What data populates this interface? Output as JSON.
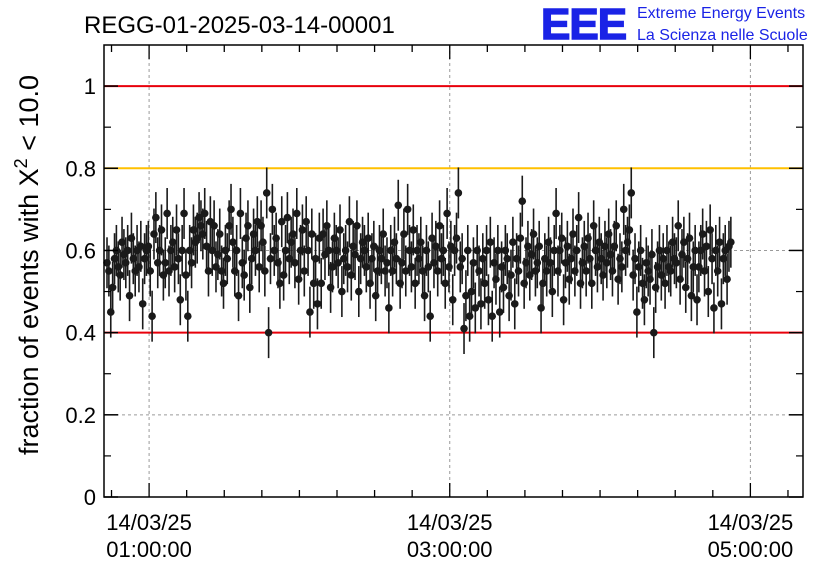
{
  "chart_data": {
    "type": "scatter",
    "title": "REGG-01-2025-03-14-00001",
    "ylabel_prefix": "fraction of events with ",
    "ylabel_symbol": "X",
    "ylabel_sup": "2",
    "ylabel_suffix": " < 10.0",
    "ylim": [
      0,
      1.1
    ],
    "xlim_hours": [
      0.7,
      5.35
    ],
    "y_ticks": [
      {
        "value": 0,
        "label": "0"
      },
      {
        "value": 0.2,
        "label": "0.2"
      },
      {
        "value": 0.4,
        "label": "0.4"
      },
      {
        "value": 0.6,
        "label": "0.6"
      },
      {
        "value": 0.8,
        "label": "0.8"
      },
      {
        "value": 1,
        "label": "1"
      }
    ],
    "x_ticks": [
      {
        "hours": 1,
        "date": "14/03/25",
        "time": "01:00:00"
      },
      {
        "hours": 3,
        "date": "14/03/25",
        "time": "03:00:00"
      },
      {
        "hours": 5,
        "date": "14/03/25",
        "time": "05:00:00"
      }
    ],
    "reference_lines": [
      {
        "value": 1.0,
        "color": "#e8000b"
      },
      {
        "value": 0.8,
        "color": "#ffc000"
      },
      {
        "value": 0.4,
        "color": "#e8000b"
      }
    ],
    "grid": true,
    "marker_color": "#1a1a1a",
    "points": {
      "start_hour": 0.72,
      "step_hour": 0.0125,
      "error": 0.062,
      "y": [
        0.57,
        0.55,
        0.45,
        0.51,
        0.58,
        0.6,
        0.56,
        0.54,
        0.62,
        0.59,
        0.57,
        0.6,
        0.49,
        0.63,
        0.58,
        0.55,
        0.6,
        0.56,
        0.61,
        0.47,
        0.58,
        0.6,
        0.61,
        0.55,
        0.44,
        0.64,
        0.68,
        0.57,
        0.6,
        0.65,
        0.54,
        0.57,
        0.69,
        0.55,
        0.6,
        0.62,
        0.56,
        0.65,
        0.58,
        0.48,
        0.6,
        0.69,
        0.54,
        0.44,
        0.6,
        0.57,
        0.65,
        0.62,
        0.63,
        0.68,
        0.66,
        0.64,
        0.69,
        0.61,
        0.55,
        0.67,
        0.6,
        0.66,
        0.56,
        0.59,
        0.64,
        0.55,
        0.52,
        0.6,
        0.58,
        0.66,
        0.7,
        0.62,
        0.55,
        0.6,
        0.49,
        0.69,
        0.57,
        0.54,
        0.63,
        0.66,
        0.51,
        0.58,
        0.64,
        0.6,
        0.67,
        0.56,
        0.66,
        0.62,
        0.55,
        0.74,
        0.4,
        0.58,
        0.7,
        0.6,
        0.63,
        0.57,
        0.52,
        0.67,
        0.54,
        0.6,
        0.68,
        0.58,
        0.62,
        0.64,
        0.57,
        0.69,
        0.53,
        0.6,
        0.65,
        0.55,
        0.67,
        0.6,
        0.45,
        0.64,
        0.52,
        0.58,
        0.47,
        0.63,
        0.52,
        0.64,
        0.59,
        0.66,
        0.6,
        0.51,
        0.56,
        0.63,
        0.6,
        0.57,
        0.65,
        0.5,
        0.58,
        0.6,
        0.56,
        0.67,
        0.54,
        0.61,
        0.59,
        0.66,
        0.5,
        0.58,
        0.62,
        0.6,
        0.56,
        0.63,
        0.52,
        0.58,
        0.61,
        0.49,
        0.55,
        0.6,
        0.58,
        0.64,
        0.55,
        0.57,
        0.46,
        0.6,
        0.55,
        0.62,
        0.58,
        0.71,
        0.52,
        0.57,
        0.64,
        0.55,
        0.7,
        0.6,
        0.56,
        0.65,
        0.52,
        0.6,
        0.58,
        0.62,
        0.55,
        0.49,
        0.6,
        0.56,
        0.44,
        0.63,
        0.57,
        0.61,
        0.55,
        0.66,
        0.58,
        0.6,
        0.52,
        0.69,
        0.56,
        0.61,
        0.48,
        0.6,
        0.63,
        0.74,
        0.56,
        0.58,
        0.41,
        0.49,
        0.6,
        0.44,
        0.5,
        0.57,
        0.46,
        0.6,
        0.55,
        0.47,
        0.58,
        0.52,
        0.6,
        0.48,
        0.62,
        0.44,
        0.57,
        0.53,
        0.6,
        0.45,
        0.56,
        0.51,
        0.6,
        0.58,
        0.49,
        0.54,
        0.62,
        0.47,
        0.58,
        0.55,
        0.63,
        0.72,
        0.52,
        0.57,
        0.61,
        0.54,
        0.59,
        0.64,
        0.55,
        0.57,
        0.61,
        0.46,
        0.52,
        0.58,
        0.55,
        0.62,
        0.57,
        0.5,
        0.6,
        0.69,
        0.55,
        0.6,
        0.63,
        0.48,
        0.57,
        0.61,
        0.53,
        0.58,
        0.64,
        0.55,
        0.6,
        0.68,
        0.52,
        0.57,
        0.61,
        0.55,
        0.63,
        0.58,
        0.52,
        0.66,
        0.6,
        0.56,
        0.62,
        0.58,
        0.54,
        0.61,
        0.57,
        0.64,
        0.59,
        0.55,
        0.61,
        0.66,
        0.53,
        0.58,
        0.56,
        0.7,
        0.6,
        0.62,
        0.65,
        0.74,
        0.54,
        0.58,
        0.45,
        0.56,
        0.6,
        0.52,
        0.48,
        0.57,
        0.55,
        0.53,
        0.59,
        0.4,
        0.51,
        0.56,
        0.6,
        0.54,
        0.58,
        0.52,
        0.6,
        0.56,
        0.55,
        0.62,
        0.58,
        0.57,
        0.66,
        0.53,
        0.59,
        0.62,
        0.51,
        0.58,
        0.63,
        0.49,
        0.56,
        0.6,
        0.48,
        0.56,
        0.6,
        0.64,
        0.55,
        0.61,
        0.5,
        0.65,
        0.58,
        0.46,
        0.6,
        0.55,
        0.62,
        0.47,
        0.58,
        0.6,
        0.53,
        0.61,
        0.62
      ]
    }
  },
  "logo": {
    "mark": "EEE",
    "line1": "Extreme Energy Events",
    "line2": "La Scienza nelle Scuole",
    "color": "#1a23e6"
  }
}
